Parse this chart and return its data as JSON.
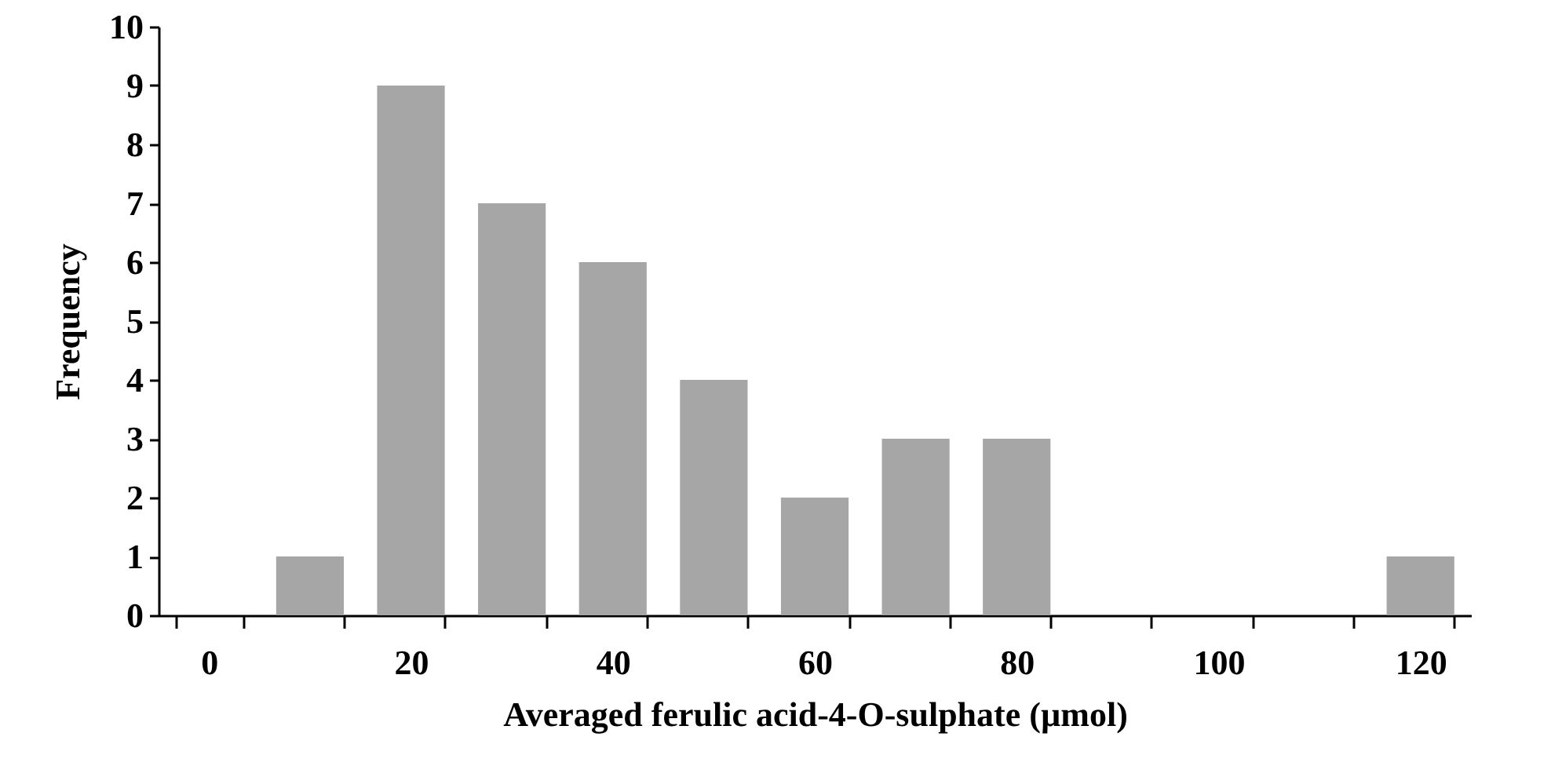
{
  "chart_data": {
    "type": "bar",
    "xlabel": "Averaged ferulic acid-4-O-sulphate (µmol)",
    "ylabel": "Frequency",
    "categories": [
      "0",
      null,
      "20",
      null,
      "40",
      null,
      "60",
      null,
      "80",
      null,
      "100",
      null,
      "120"
    ],
    "values": [
      0,
      1,
      9,
      7,
      6,
      4,
      2,
      3,
      3,
      0,
      0,
      0,
      1
    ],
    "color": "#a6a6a6",
    "ylim": [
      0,
      10
    ],
    "yticks": [
      0,
      1,
      2,
      3,
      4,
      5,
      6,
      7,
      8,
      9,
      10
    ],
    "grid": false
  }
}
